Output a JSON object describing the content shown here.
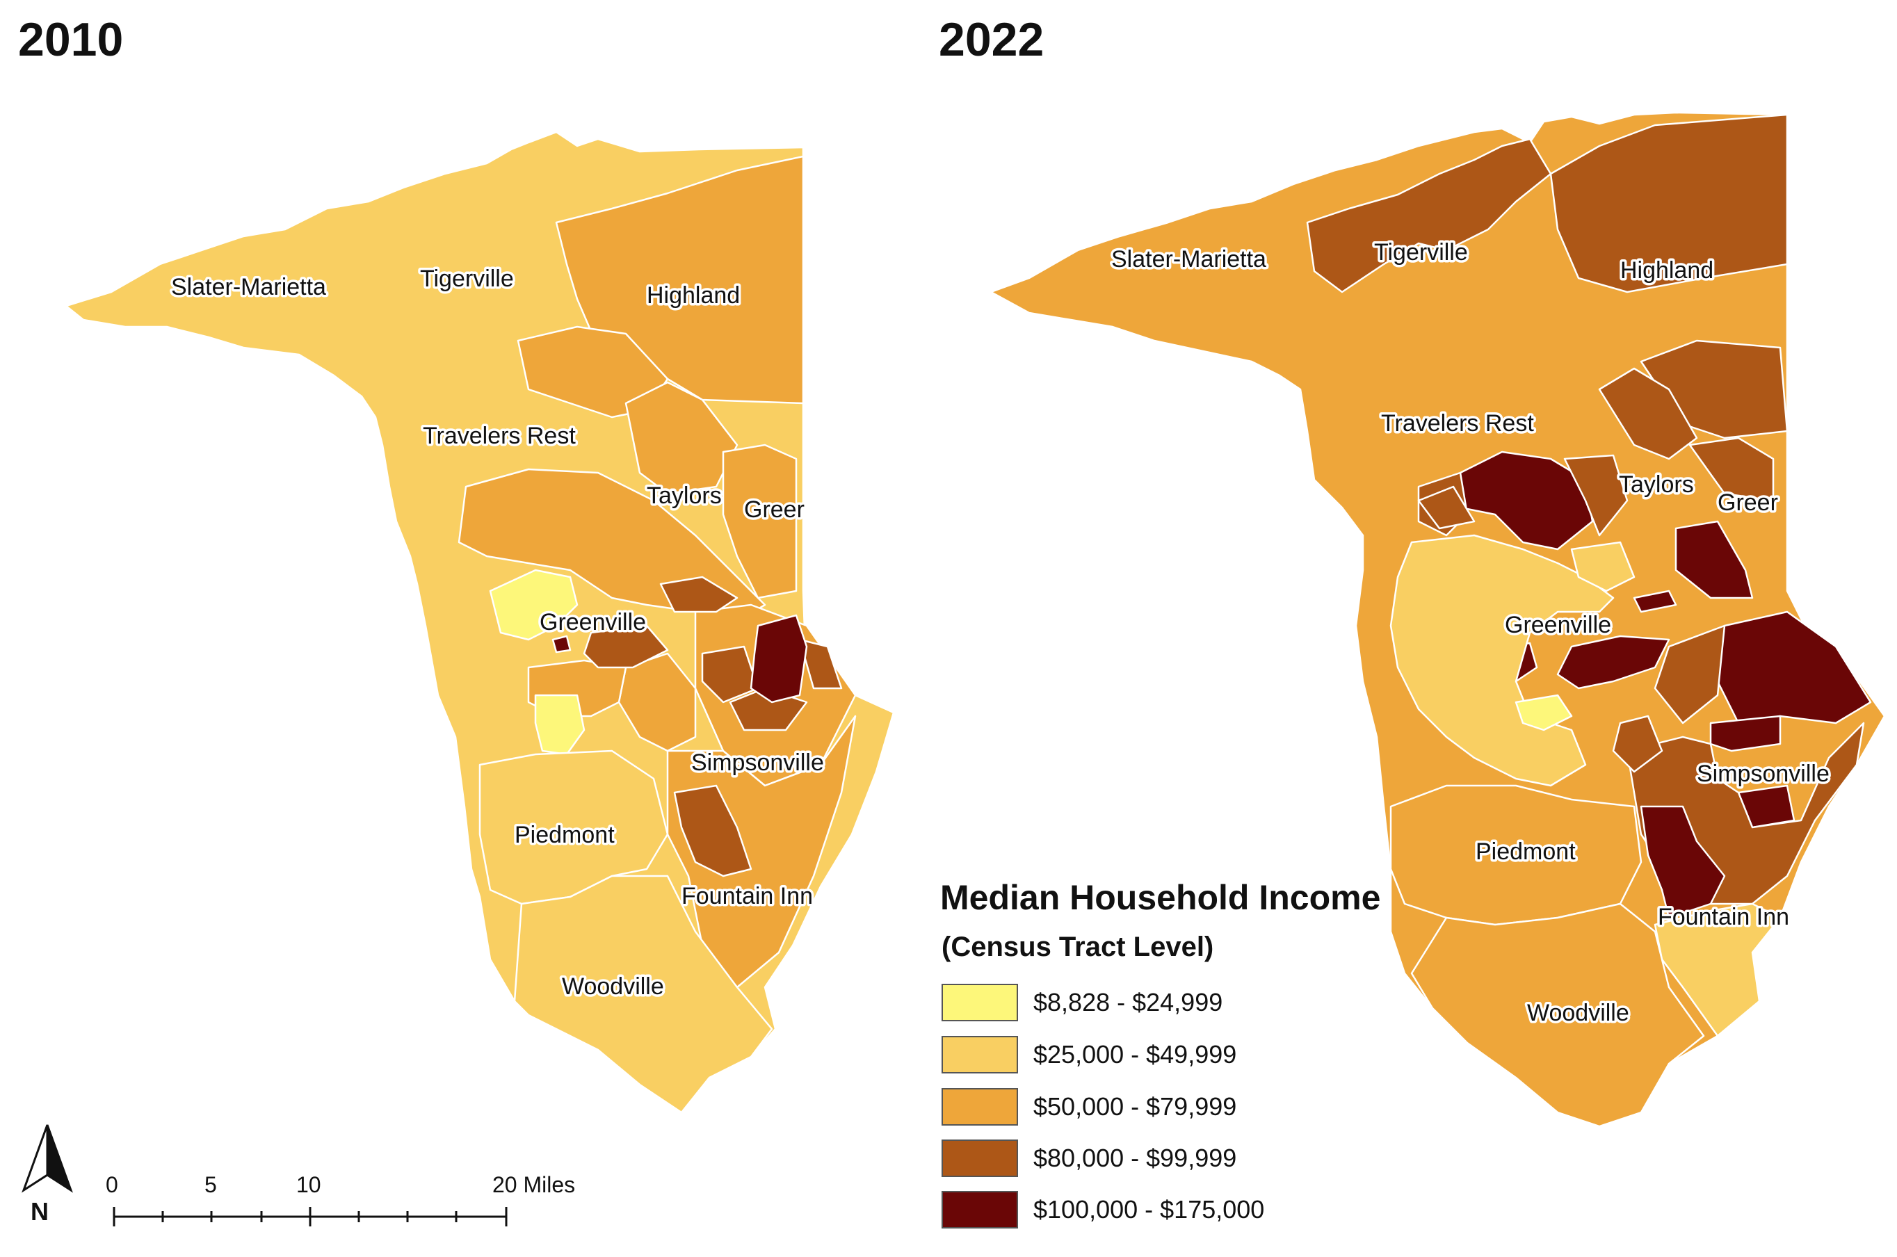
{
  "maps": {
    "left": {
      "year": "2010",
      "labels": {
        "slater": "Slater-Marietta",
        "tigerville": "Tigerville",
        "highland": "Highland",
        "travelers": "Travelers Rest",
        "taylors": "Taylors",
        "greer": "Greer",
        "greenville": "Greenville",
        "simpsonville": "Simpsonville",
        "piedmont": "Piedmont",
        "fountain": "Fountain Inn",
        "woodville": "Woodville"
      }
    },
    "right": {
      "year": "2022",
      "labels": {
        "slater": "Slater-Marietta",
        "tigerville": "Tigerville",
        "highland": "Highland",
        "travelers": "Travelers Rest",
        "taylors": "Taylors",
        "greer": "Greer",
        "greenville": "Greenville",
        "simpsonville": "Simpsonville",
        "piedmont": "Piedmont",
        "fountain": "Fountain Inn",
        "woodville": "Woodville"
      }
    }
  },
  "legend": {
    "title": "Median Household Income",
    "subtitle": "(Census Tract Level)",
    "classes": [
      {
        "label": "$8,828 - $24,999",
        "color": "#fdf77a"
      },
      {
        "label": "$25,000 - $49,999",
        "color": "#f9cf62"
      },
      {
        "label": "$50,000 - $79,999",
        "color": "#eea63a"
      },
      {
        "label": "$80,000 - $99,999",
        "color": "#ad5717"
      },
      {
        "label": "$100,000 - $175,000",
        "color": "#6a0606"
      }
    ]
  },
  "scale_bar": {
    "labels": [
      "0",
      "5",
      "10",
      "20 Miles"
    ]
  },
  "north_arrow": {
    "label": "N",
    "icon": "north-arrow-icon"
  }
}
